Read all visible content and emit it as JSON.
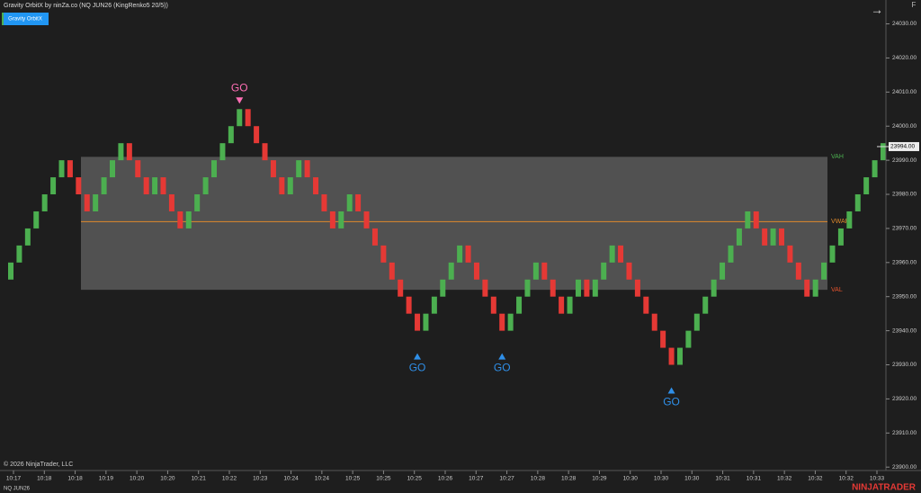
{
  "chart_data": {
    "type": "renko",
    "title": "Gravity OrbitX by ninZa.co (NQ JUN26 (KingRenko5 20/5))",
    "indicator_button": "Gravity OrbitX",
    "instrument": "NQ JUN26",
    "copyright": "© 2026 NinjaTrader, LLC",
    "brand": "NINJATRADER",
    "corner_label": "F",
    "brick_size": 5,
    "up_color": "#4caf50",
    "down_color": "#e53935",
    "values": [
      23960,
      23965,
      23970,
      23975,
      23980,
      23985,
      23990,
      23985,
      23980,
      23975,
      23980,
      23985,
      23990,
      23995,
      23990,
      23985,
      23980,
      23985,
      23980,
      23975,
      23970,
      23975,
      23980,
      23985,
      23990,
      23995,
      24000,
      24005,
      24000,
      23995,
      23990,
      23985,
      23980,
      23985,
      23990,
      23985,
      23980,
      23975,
      23970,
      23975,
      23980,
      23975,
      23970,
      23965,
      23960,
      23955,
      23950,
      23945,
      23940,
      23945,
      23950,
      23955,
      23960,
      23965,
      23960,
      23955,
      23950,
      23945,
      23940,
      23945,
      23950,
      23955,
      23960,
      23955,
      23950,
      23945,
      23950,
      23955,
      23950,
      23955,
      23960,
      23965,
      23960,
      23955,
      23950,
      23945,
      23940,
      23935,
      23930,
      23935,
      23940,
      23945,
      23950,
      23955,
      23960,
      23965,
      23970,
      23975,
      23970,
      23965,
      23970,
      23965,
      23960,
      23955,
      23950,
      23955,
      23960,
      23965,
      23970,
      23975,
      23980,
      23985,
      23990,
      23995
    ],
    "levels": [
      {
        "name": "VAH",
        "value": 23991,
        "color": "#4caf50"
      },
      {
        "name": "VWAP",
        "value": 23972,
        "color": "#e08a2c"
      },
      {
        "name": "VAL",
        "value": 23952,
        "color": "#e5532d"
      }
    ],
    "signals": [
      {
        "label": "GO",
        "brick": 27,
        "side": "short",
        "color": "#ff6fb5"
      },
      {
        "label": "GO",
        "brick": 48,
        "side": "long",
        "color": "#2f8fe8"
      },
      {
        "label": "GO",
        "brick": 58,
        "side": "long",
        "color": "#2f8fe8"
      },
      {
        "label": "GO",
        "brick": 78,
        "side": "long",
        "color": "#2f8fe8"
      }
    ],
    "last_price": {
      "value": 23994,
      "label": "23994.00"
    },
    "ylim": [
      23899,
      24037
    ],
    "yticks": [
      {
        "value": 23900,
        "label": "23900.00"
      },
      {
        "value": 23910,
        "label": "23910.00"
      },
      {
        "value": 23920,
        "label": "23920.00"
      },
      {
        "value": 23930,
        "label": "23930.00"
      },
      {
        "value": 23940,
        "label": "23940.00"
      },
      {
        "value": 23950,
        "label": "23950.00"
      },
      {
        "value": 23960,
        "label": "23960.00"
      },
      {
        "value": 23970,
        "label": "23970.00"
      },
      {
        "value": 23980,
        "label": "23980.00"
      },
      {
        "value": 23990,
        "label": "23990.00"
      },
      {
        "value": 24000,
        "label": "24000.00"
      },
      {
        "value": 24010,
        "label": "24010.00"
      },
      {
        "value": 24020,
        "label": "24020.00"
      },
      {
        "value": 24030,
        "label": "24030.00"
      }
    ],
    "x_labels": [
      "10:17",
      "10:18",
      "10:18",
      "10:19",
      "10:20",
      "10:20",
      "10:21",
      "10:22",
      "10:23",
      "10:24",
      "10:24",
      "10:25",
      "10:25",
      "10:25",
      "10:26",
      "10:27",
      "10:27",
      "10:28",
      "10:28",
      "10:29",
      "10:30",
      "10:30",
      "10:30",
      "10:31",
      "10:31",
      "10:32",
      "10:32",
      "10:32",
      "10:33"
    ]
  }
}
